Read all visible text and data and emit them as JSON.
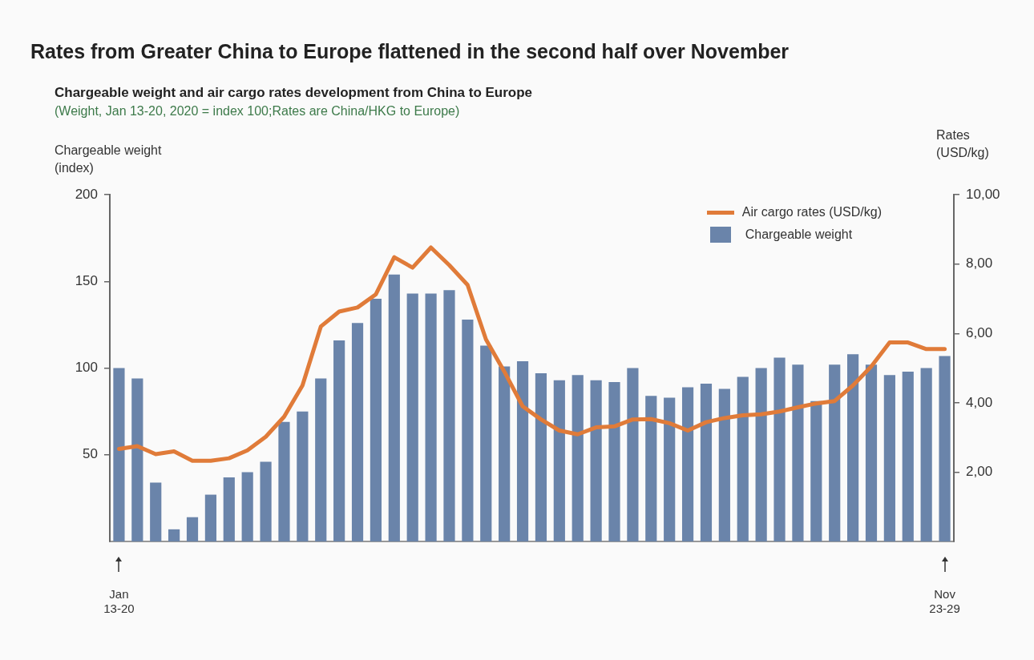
{
  "chart_data": {
    "type": "bar",
    "title": "Rates from Greater China to Europe flattened in the second half over November",
    "subtitle": "Chargeable weight and air cargo rates development from China to Europe",
    "annotations": [
      "(Weight, Jan 13-20, 2020 = index 100;Rates are China/HKG to Europe)"
    ],
    "ylabel": "Chargeable weight (index)",
    "y2label": "Rates (USD/kg)",
    "categories": [
      "Jan 13-20",
      null,
      null,
      null,
      null,
      null,
      null,
      null,
      null,
      null,
      null,
      null,
      null,
      null,
      null,
      null,
      null,
      null,
      null,
      null,
      null,
      null,
      null,
      null,
      null,
      null,
      null,
      null,
      null,
      null,
      null,
      null,
      null,
      null,
      null,
      null,
      null,
      null,
      null,
      null,
      null,
      null,
      null,
      null,
      null,
      "Nov 23-29"
    ],
    "series": [
      {
        "name": "Air cargo rates (USD/kg)",
        "type": "line",
        "axis": "y2",
        "color": "#e07b39",
        "values": [
          2.67,
          2.75,
          2.52,
          2.6,
          2.33,
          2.33,
          2.4,
          2.63,
          3.02,
          3.6,
          4.5,
          6.2,
          6.63,
          6.75,
          7.13,
          8.2,
          7.9,
          8.48,
          7.97,
          7.4,
          5.83,
          4.9,
          3.9,
          3.52,
          3.2,
          3.09,
          3.29,
          3.32,
          3.52,
          3.53,
          3.41,
          3.2,
          3.44,
          3.56,
          3.64,
          3.67,
          3.75,
          3.87,
          3.98,
          4.05,
          4.5,
          5.05,
          5.74,
          5.74,
          5.55,
          5.55
        ]
      },
      {
        "name": "Chargeable weight",
        "color": "#6a84aa",
        "values": [
          100,
          94,
          34,
          7,
          14,
          27,
          37,
          40,
          46,
          69,
          75,
          94,
          116,
          126,
          140,
          154,
          143,
          143,
          145,
          128,
          113,
          101,
          104,
          97,
          93,
          96,
          93,
          92,
          100,
          84,
          83,
          89,
          91,
          88,
          95,
          100,
          106,
          102,
          81,
          102,
          108,
          102,
          96,
          98,
          100,
          107
        ]
      }
    ],
    "ylim": [
      0,
      200
    ],
    "yticks": [
      50,
      100,
      150,
      200
    ],
    "y2lim": [
      0,
      10
    ],
    "y2ticks": [
      {
        "value": 2,
        "label": "2,00"
      },
      {
        "value": 4,
        "label": "4,00"
      },
      {
        "value": 6,
        "label": "6,00"
      },
      {
        "value": 8,
        "label": "8,00"
      },
      {
        "value": 10,
        "label": "10,00"
      }
    ],
    "legend": "top right"
  }
}
